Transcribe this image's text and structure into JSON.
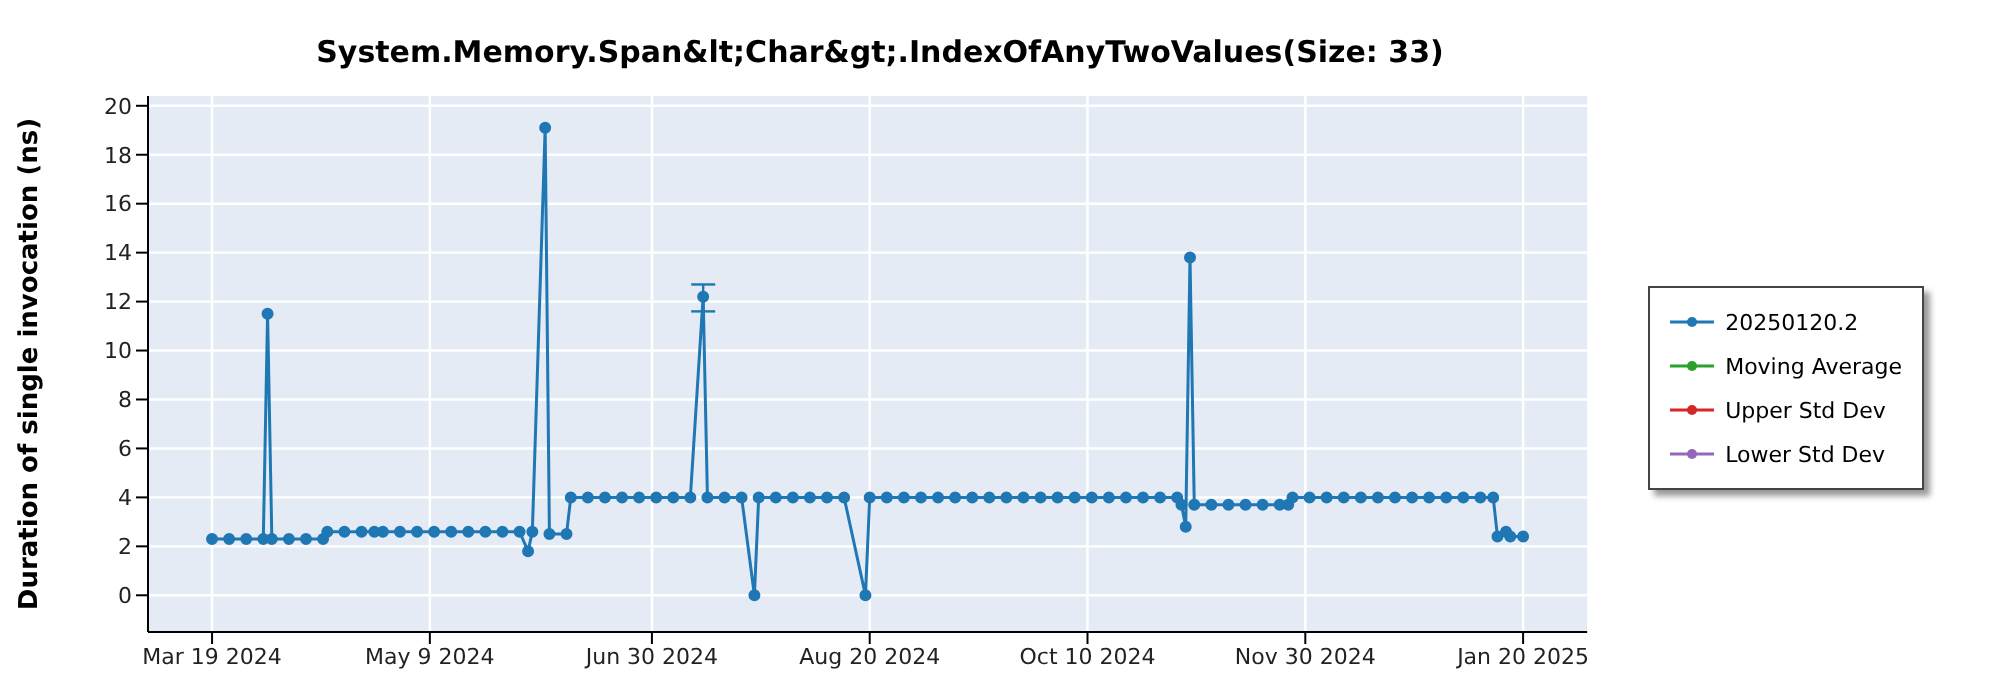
{
  "chart_data": {
    "type": "line",
    "title": "System.Memory.Span&lt;Char&gt;.IndexOfAnyTwoValues(Size: 33)",
    "ylabel": "Duration of single invocation (ns)",
    "xlim": [
      "2024-03-04",
      "2025-02-04"
    ],
    "xticks": [
      {
        "value": "2024-03-19",
        "label": "Mar 19 2024"
      },
      {
        "value": "2024-05-09",
        "label": "May 9 2024"
      },
      {
        "value": "2024-06-30",
        "label": "Jun 30 2024"
      },
      {
        "value": "2024-08-20",
        "label": "Aug 20 2024"
      },
      {
        "value": "2024-10-10",
        "label": "Oct 10 2024"
      },
      {
        "value": "2024-11-30",
        "label": "Nov 30 2024"
      },
      {
        "value": "2025-01-20",
        "label": "Jan 20 2025"
      }
    ],
    "ylim": [
      -1.5,
      20.4
    ],
    "yticks": [
      0,
      2,
      4,
      6,
      8,
      10,
      12,
      14,
      16,
      18,
      20
    ],
    "grid": true,
    "legend": "right",
    "marker": "circle",
    "series": [
      {
        "name": "20250120.2",
        "color": "#1f77b4",
        "x": [
          "2024-03-19",
          "2024-03-23",
          "2024-03-27",
          "2024-03-31",
          "2024-04-01",
          "2024-04-02",
          "2024-04-06",
          "2024-04-10",
          "2024-04-14",
          "2024-04-15",
          "2024-04-19",
          "2024-04-23",
          "2024-04-26",
          "2024-04-27",
          "2024-04-28",
          "2024-05-02",
          "2024-05-06",
          "2024-05-10",
          "2024-05-14",
          "2024-05-18",
          "2024-05-22",
          "2024-05-26",
          "2024-05-30",
          "2024-06-01",
          "2024-06-02",
          "2024-06-05",
          "2024-06-06",
          "2024-06-10",
          "2024-06-11",
          "2024-06-15",
          "2024-06-19",
          "2024-06-23",
          "2024-06-27",
          "2024-07-01",
          "2024-07-05",
          "2024-07-09",
          "2024-07-12",
          "2024-07-13",
          "2024-07-17",
          "2024-07-21",
          "2024-07-24",
          "2024-07-25",
          "2024-07-29",
          "2024-08-02",
          "2024-08-06",
          "2024-08-10",
          "2024-08-14",
          "2024-08-19",
          "2024-08-20",
          "2024-08-24",
          "2024-08-28",
          "2024-09-01",
          "2024-09-05",
          "2024-09-09",
          "2024-09-13",
          "2024-09-17",
          "2024-09-21",
          "2024-09-25",
          "2024-09-29",
          "2024-10-03",
          "2024-10-07",
          "2024-10-11",
          "2024-10-15",
          "2024-10-19",
          "2024-10-23",
          "2024-10-27",
          "2024-10-31",
          "2024-11-01",
          "2024-11-02",
          "2024-11-03",
          "2024-11-04",
          "2024-11-08",
          "2024-11-12",
          "2024-11-16",
          "2024-11-20",
          "2024-11-24",
          "2024-11-26",
          "2024-11-27",
          "2024-12-01",
          "2024-12-05",
          "2024-12-09",
          "2024-12-13",
          "2024-12-17",
          "2024-12-21",
          "2024-12-25",
          "2024-12-29",
          "2025-01-02",
          "2025-01-06",
          "2025-01-10",
          "2025-01-13",
          "2025-01-14",
          "2025-01-16",
          "2025-01-17",
          "2025-01-20"
        ],
        "values": [
          2.3,
          2.3,
          2.3,
          2.3,
          11.5,
          2.3,
          2.3,
          2.3,
          2.3,
          2.6,
          2.6,
          2.6,
          2.6,
          null,
          2.6,
          2.6,
          2.6,
          2.6,
          2.6,
          2.6,
          2.6,
          2.6,
          2.6,
          1.8,
          2.6,
          19.1,
          2.5,
          2.5,
          4.0,
          4.0,
          4.0,
          4.0,
          4.0,
          4.0,
          4.0,
          4.0,
          12.2,
          4.0,
          4.0,
          4.0,
          0,
          4.0,
          4.0,
          4.0,
          4.0,
          4.0,
          4.0,
          0,
          4.0,
          4.0,
          4.0,
          4.0,
          4.0,
          4.0,
          4.0,
          4.0,
          4.0,
          4.0,
          4.0,
          4.0,
          4.0,
          4.0,
          4.0,
          4.0,
          4.0,
          4.0,
          4.0,
          3.7,
          2.8,
          13.8,
          3.7,
          3.7,
          3.7,
          3.7,
          3.7,
          3.7,
          3.7,
          4.0,
          4.0,
          4.0,
          4.0,
          4.0,
          4.0,
          4.0,
          4.0,
          4.0,
          4.0,
          4.0,
          4.0,
          4.0,
          2.4,
          2.6,
          2.4,
          2.4
        ],
        "errors": [
          null,
          null,
          null,
          null,
          null,
          null,
          null,
          null,
          null,
          null,
          null,
          null,
          null,
          null,
          null,
          null,
          null,
          null,
          null,
          null,
          null,
          null,
          null,
          null,
          null,
          null,
          null,
          null,
          null,
          null,
          null,
          null,
          null,
          null,
          null,
          null,
          [
            11.6,
            12.7
          ],
          null,
          null,
          null,
          null,
          null,
          null,
          null,
          null,
          null,
          null,
          null,
          null,
          null,
          null,
          null,
          null,
          null,
          null,
          null,
          null,
          null,
          null,
          null,
          null,
          null,
          null,
          null,
          null,
          null,
          null,
          null,
          null,
          null,
          null,
          null,
          null,
          null,
          null,
          null,
          null,
          null,
          null,
          null,
          null,
          null,
          null,
          null,
          null,
          null,
          null,
          null,
          null,
          null,
          null,
          null,
          null,
          null
        ]
      },
      {
        "name": "Moving Average",
        "color": "#2ca02c"
      },
      {
        "name": "Upper Std Dev",
        "color": "#d62728"
      },
      {
        "name": "Lower Std Dev",
        "color": "#9467bd"
      }
    ]
  }
}
